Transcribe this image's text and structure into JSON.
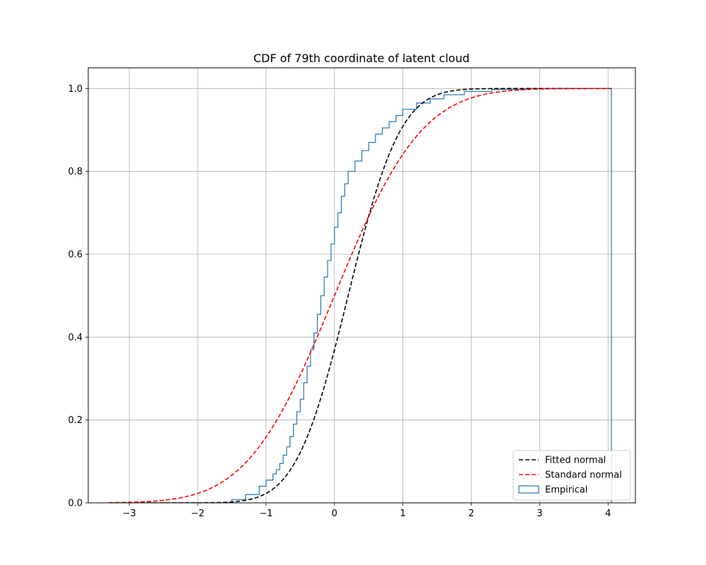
{
  "chart_data": {
    "type": "line",
    "title": "CDF of 79th coordinate of latent cloud",
    "xlabel": "",
    "ylabel": "",
    "xlim": [
      -3.6,
      4.4
    ],
    "ylim": [
      0.0,
      1.05
    ],
    "x_ticks": [
      -3,
      -2,
      -1,
      0,
      1,
      2,
      3,
      4
    ],
    "x_tick_labels": [
      "−3",
      "−2",
      "−1",
      "0",
      "1",
      "2",
      "3",
      "4"
    ],
    "y_ticks": [
      0.0,
      0.2,
      0.4,
      0.6,
      0.8,
      1.0
    ],
    "y_tick_labels": [
      "0.0",
      "0.2",
      "0.4",
      "0.6",
      "0.8",
      "1.0"
    ],
    "grid": true,
    "legend_position": "bottom-right",
    "series": [
      {
        "name": "Fitted normal",
        "kind": "normal_cdf",
        "mu": 0.2,
        "sigma": 0.6,
        "x_range": [
          -3.3,
          4.05
        ],
        "color": "#000000",
        "dash": true
      },
      {
        "name": "Standard normal",
        "kind": "normal_cdf",
        "mu": 0.0,
        "sigma": 1.0,
        "x_range": [
          -3.3,
          4.05
        ],
        "color": "#ff0000",
        "dash": true
      },
      {
        "name": "Empirical",
        "kind": "step_hist",
        "color": "#1f77b4",
        "points": [
          [
            -3.3,
            0.0
          ],
          [
            -1.5,
            0.008
          ],
          [
            -1.3,
            0.02
          ],
          [
            -1.1,
            0.04
          ],
          [
            -1.0,
            0.055
          ],
          [
            -0.9,
            0.07
          ],
          [
            -0.85,
            0.08
          ],
          [
            -0.8,
            0.095
          ],
          [
            -0.75,
            0.115
          ],
          [
            -0.7,
            0.135
          ],
          [
            -0.65,
            0.16
          ],
          [
            -0.6,
            0.19
          ],
          [
            -0.55,
            0.22
          ],
          [
            -0.5,
            0.25
          ],
          [
            -0.45,
            0.29
          ],
          [
            -0.4,
            0.33
          ],
          [
            -0.35,
            0.37
          ],
          [
            -0.3,
            0.41
          ],
          [
            -0.25,
            0.455
          ],
          [
            -0.2,
            0.5
          ],
          [
            -0.15,
            0.545
          ],
          [
            -0.1,
            0.585
          ],
          [
            -0.05,
            0.625
          ],
          [
            0.0,
            0.665
          ],
          [
            0.05,
            0.7
          ],
          [
            0.1,
            0.74
          ],
          [
            0.15,
            0.77
          ],
          [
            0.2,
            0.8
          ],
          [
            0.3,
            0.825
          ],
          [
            0.4,
            0.85
          ],
          [
            0.5,
            0.87
          ],
          [
            0.6,
            0.89
          ],
          [
            0.7,
            0.905
          ],
          [
            0.8,
            0.92
          ],
          [
            0.9,
            0.935
          ],
          [
            1.0,
            0.95
          ],
          [
            1.2,
            0.965
          ],
          [
            1.4,
            0.975
          ],
          [
            1.6,
            0.985
          ],
          [
            1.9,
            0.993
          ],
          [
            2.3,
            0.998
          ],
          [
            2.8,
            1.0
          ],
          [
            4.05,
            1.0
          ]
        ]
      }
    ]
  }
}
